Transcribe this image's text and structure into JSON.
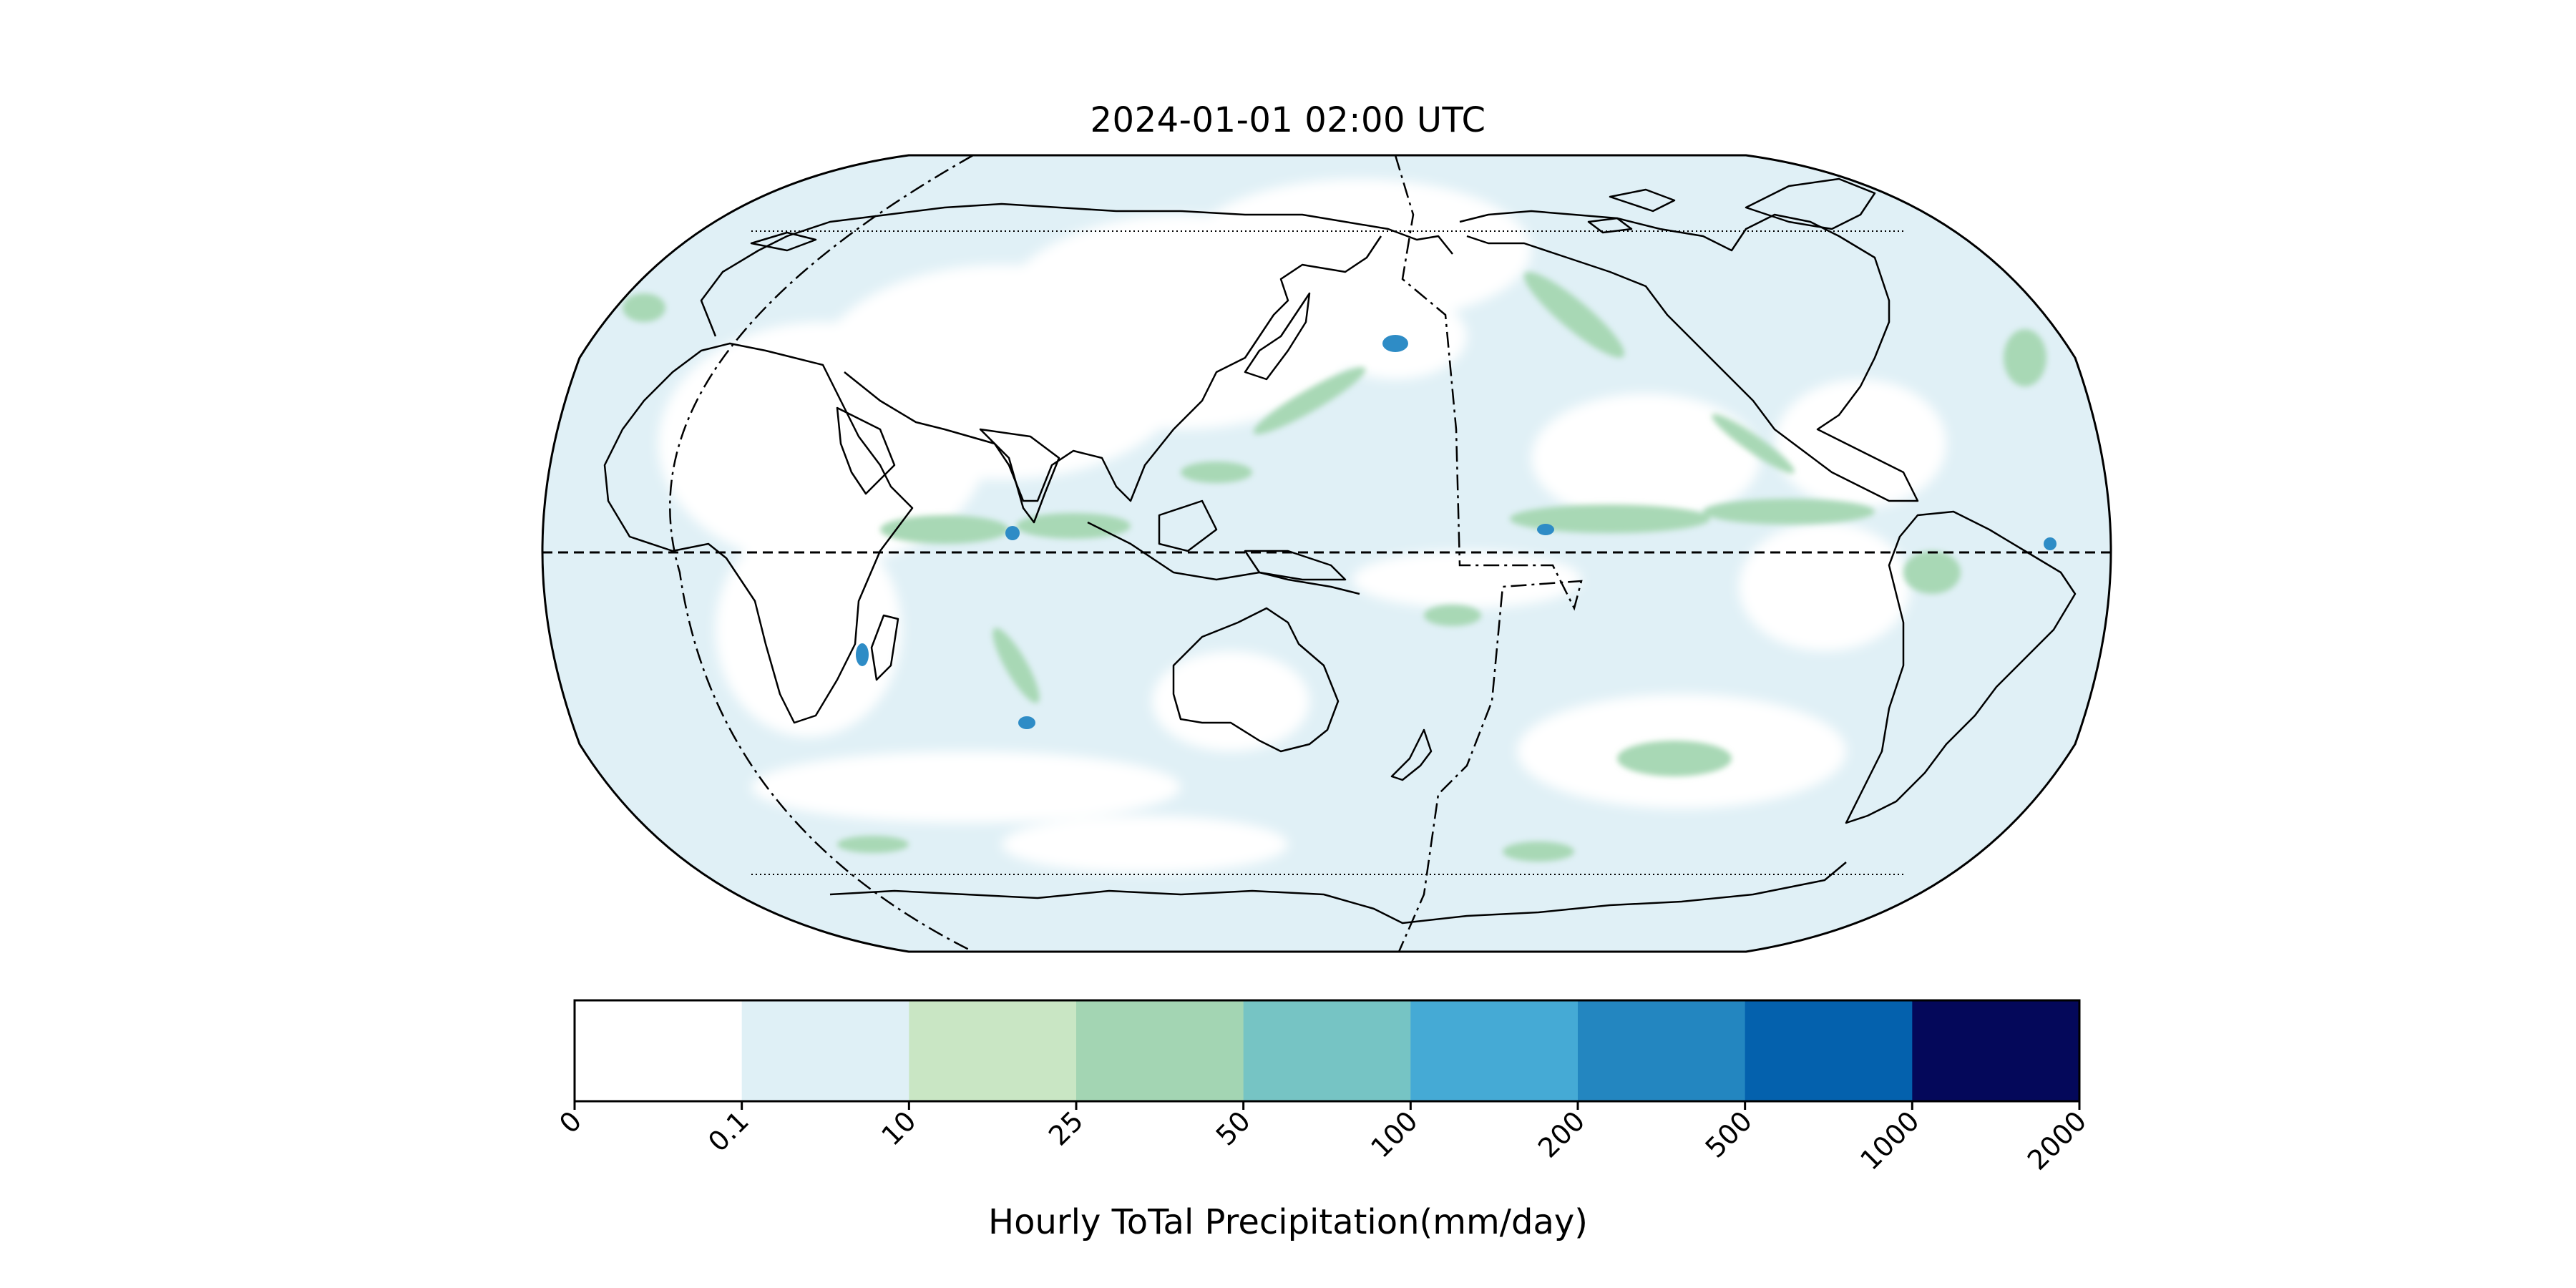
{
  "map": {
    "title": "2024-01-01 02:00 UTC",
    "projection": "Robinson",
    "central_longitude": 150,
    "features": [
      "coastlines",
      "equator (dashed)",
      "polar circles (dotted)",
      "date line (dash-dot)"
    ]
  },
  "colorbar": {
    "label": "Hourly ToTal Precipitation(mm/day)",
    "ticks": [
      "0",
      "0.1",
      "10",
      "25",
      "50",
      "100",
      "200",
      "500",
      "1000",
      "2000"
    ],
    "colors": [
      "#ffffff",
      "#dff0f6",
      "#c9e6c4",
      "#a3d5b3",
      "#76c4c4",
      "#45aad5",
      "#2386c0",
      "#0461ad",
      "#04085a"
    ]
  }
}
